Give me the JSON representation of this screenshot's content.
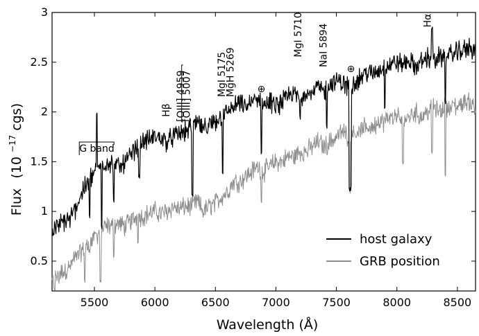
{
  "chart_data": {
    "type": "line",
    "title": "",
    "xlabel": "Wavelength (Å)",
    "ylabel": "Flux (10^-17 cgs)",
    "ylabel_main": "Flux",
    "ylabel_prefix": "(10",
    "ylabel_exp": "−17",
    "ylabel_suffix": " cgs)",
    "xlim": [
      5150,
      8650
    ],
    "ylim": [
      0.2,
      3.0
    ],
    "xticks": [
      5500,
      6000,
      6500,
      7000,
      7500,
      8000,
      8500
    ],
    "yticks": [
      0.5,
      1,
      1.5,
      2,
      2.5,
      3
    ],
    "ytick_labels": [
      "0.5",
      "1",
      "1.5",
      "2",
      "2.5",
      "3"
    ],
    "legend_position": "bottom-right",
    "series": [
      {
        "name": "host galaxy",
        "color": "#000000",
        "x": [
          5150,
          5200,
          5250,
          5300,
          5350,
          5400,
          5450,
          5500,
          5550,
          5600,
          5650,
          5700,
          5750,
          5800,
          5850,
          5900,
          5950,
          6000,
          6050,
          6100,
          6150,
          6200,
          6250,
          6300,
          6350,
          6400,
          6450,
          6500,
          6550,
          6600,
          6650,
          6700,
          6750,
          6800,
          6850,
          6900,
          6950,
          7000,
          7050,
          7100,
          7150,
          7200,
          7250,
          7300,
          7350,
          7400,
          7450,
          7500,
          7550,
          7600,
          7650,
          7700,
          7750,
          7800,
          7850,
          7900,
          7950,
          8000,
          8050,
          8100,
          8150,
          8200,
          8250,
          8300,
          8350,
          8400,
          8450,
          8500,
          8550,
          8600,
          8650
        ],
        "y": [
          0.8,
          0.85,
          0.9,
          0.92,
          1.05,
          1.2,
          1.3,
          1.4,
          1.45,
          1.5,
          1.48,
          1.45,
          1.5,
          1.55,
          1.65,
          1.7,
          1.72,
          1.75,
          1.74,
          1.7,
          1.75,
          1.78,
          1.8,
          1.85,
          1.9,
          1.82,
          1.85,
          1.9,
          1.95,
          2.0,
          2.05,
          2.08,
          2.05,
          2.1,
          2.12,
          2.08,
          2.1,
          2.05,
          2.1,
          2.15,
          2.18,
          2.15,
          2.2,
          2.2,
          2.25,
          2.2,
          2.28,
          2.3,
          2.3,
          2.25,
          2.3,
          2.35,
          2.4,
          2.38,
          2.42,
          2.45,
          2.48,
          2.5,
          2.48,
          2.52,
          2.45,
          2.5,
          2.55,
          2.5,
          2.55,
          2.55,
          2.58,
          2.6,
          2.62,
          2.65,
          2.62
        ],
        "features": [
          {
            "x": 5460,
            "y": 0.95
          },
          {
            "x": 5520,
            "y": 1.97
          },
          {
            "x": 5560,
            "y": 0.85
          },
          {
            "x": 5660,
            "y": 1.1
          },
          {
            "x": 5870,
            "y": 1.35
          },
          {
            "x": 6310,
            "y": 1.15
          },
          {
            "x": 6560,
            "y": 1.4
          },
          {
            "x": 6880,
            "y": 1.6
          },
          {
            "x": 7200,
            "y": 1.95
          },
          {
            "x": 7420,
            "y": 1.85
          },
          {
            "x": 7610,
            "y": 1.22
          },
          {
            "x": 7620,
            "y": 1.23
          },
          {
            "x": 7900,
            "y": 2.05
          },
          {
            "x": 8290,
            "y": 2.85
          },
          {
            "x": 8400,
            "y": 2.1
          }
        ]
      },
      {
        "name": "GRB position",
        "color": "#8c8c8c",
        "x": [
          5150,
          5200,
          5250,
          5300,
          5350,
          5400,
          5450,
          5500,
          5550,
          5600,
          5650,
          5700,
          5750,
          5800,
          5850,
          5900,
          5950,
          6000,
          6050,
          6100,
          6150,
          6200,
          6250,
          6300,
          6350,
          6400,
          6450,
          6500,
          6550,
          6600,
          6650,
          6700,
          6750,
          6800,
          6850,
          6900,
          6950,
          7000,
          7050,
          7100,
          7150,
          7200,
          7250,
          7300,
          7350,
          7400,
          7450,
          7500,
          7550,
          7600,
          7650,
          7700,
          7750,
          7800,
          7850,
          7900,
          7950,
          8000,
          8050,
          8100,
          8150,
          8200,
          8250,
          8300,
          8350,
          8400,
          8450,
          8500,
          8550,
          8600,
          8650
        ],
        "y": [
          0.3,
          0.35,
          0.4,
          0.45,
          0.55,
          0.6,
          0.65,
          0.75,
          0.8,
          0.85,
          0.85,
          0.88,
          0.85,
          0.9,
          0.95,
          0.95,
          0.98,
          1.0,
          0.98,
          1.0,
          1.05,
          1.02,
          1.05,
          1.05,
          1.1,
          1.0,
          1.05,
          1.08,
          1.15,
          1.2,
          1.3,
          1.3,
          1.35,
          1.4,
          1.45,
          1.4,
          1.45,
          1.5,
          1.5,
          1.55,
          1.55,
          1.6,
          1.6,
          1.65,
          1.7,
          1.65,
          1.7,
          1.75,
          1.8,
          1.75,
          1.8,
          1.8,
          1.85,
          1.85,
          1.9,
          1.9,
          1.95,
          1.95,
          1.9,
          1.95,
          2.0,
          1.95,
          2.0,
          2.05,
          2.0,
          2.05,
          2.05,
          2.05,
          2.1,
          2.1,
          2.05
        ],
        "features": [
          {
            "x": 5170,
            "y": 0.22
          },
          {
            "x": 5420,
            "y": 0.3
          },
          {
            "x": 5550,
            "y": 0.3
          },
          {
            "x": 5660,
            "y": 0.55
          },
          {
            "x": 5860,
            "y": 0.7
          },
          {
            "x": 6880,
            "y": 1.1
          },
          {
            "x": 7610,
            "y": 1.2
          },
          {
            "x": 8050,
            "y": 1.5
          },
          {
            "x": 8290,
            "y": 1.6
          },
          {
            "x": 8400,
            "y": 1.37
          }
        ]
      }
    ],
    "annotations": [
      {
        "label": "G band",
        "x": 5375,
        "y": 1.6,
        "bracket": true
      },
      {
        "label": "Hβ",
        "x": 6120,
        "y": 1.95,
        "rotate": true
      },
      {
        "label": "[OIII] 4959",
        "x": 6240,
        "y": 1.9,
        "rotate": true
      },
      {
        "label": "[OIII] 5007",
        "x": 6290,
        "y": 1.9,
        "rotate": true,
        "bracket": true
      },
      {
        "label": "MgI 5175",
        "x": 6580,
        "y": 2.15,
        "rotate": true
      },
      {
        "label": "MgH 5269",
        "x": 6650,
        "y": 2.15,
        "rotate": true
      },
      {
        "label": "⊕",
        "x": 6880,
        "y": 2.2
      },
      {
        "label": "MgI 5710",
        "x": 7210,
        "y": 2.55,
        "rotate": true
      },
      {
        "label": "NaI 5894",
        "x": 7420,
        "y": 2.45,
        "rotate": true
      },
      {
        "label": "⊕",
        "x": 7620,
        "y": 2.4
      },
      {
        "label": "Hα",
        "x": 8280,
        "y": 2.85,
        "rotate": true
      }
    ]
  }
}
